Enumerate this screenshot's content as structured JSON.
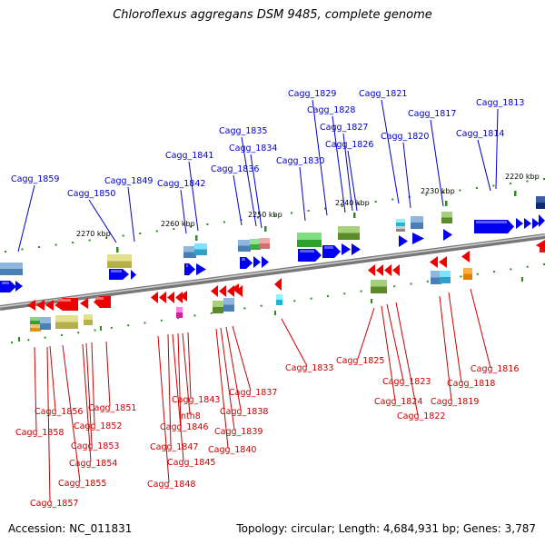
{
  "title": "Chloroflexus aggregans DSM 9485, complete genome",
  "footer": {
    "accession": "Accession: NC_011831",
    "stats": "Topology: circular; Length: 4,684,931 bp; Genes: 3,787"
  },
  "colors": {
    "forward_label": "#0000cc",
    "reverse_label": "#cc0000",
    "forward_gene": "#0000ee",
    "reverse_gene": "#ee0000",
    "tick": "#2e8b22",
    "backbone": "#999999"
  },
  "axis": {
    "unit": "kbp",
    "ticks": [
      "2220 kbp",
      "2230 kbp",
      "2240 kbp",
      "2250 kbp",
      "2260 kbp",
      "2270 kbp"
    ]
  },
  "forward_genes": [
    "Cagg_1813",
    "Cagg_1814",
    "Cagg_1817",
    "Cagg_1820",
    "Cagg_1821",
    "Cagg_1826",
    "Cagg_1827",
    "Cagg_1828",
    "Cagg_1829",
    "Cagg_1830",
    "Cagg_1834",
    "Cagg_1835",
    "Cagg_1836",
    "Cagg_1841",
    "Cagg_1842",
    "Cagg_1849",
    "Cagg_1850",
    "Cagg_1859"
  ],
  "reverse_genes": [
    "Cagg_1816",
    "Cagg_1818",
    "Cagg_1819",
    "Cagg_1822",
    "Cagg_1823",
    "Cagg_1824",
    "Cagg_1825",
    "Cagg_1833",
    "Cagg_1837",
    "Cagg_1838",
    "Cagg_1839",
    "Cagg_1840",
    "Cagg_1843",
    "nth8",
    "Cagg_1846",
    "Cagg_1847",
    "Cagg_1845",
    "Cagg_1848",
    "Cagg_1851",
    "Cagg_1852",
    "Cagg_1853",
    "Cagg_1854",
    "Cagg_1855",
    "Cagg_1856",
    "Cagg_1858",
    "Cagg_1857"
  ]
}
